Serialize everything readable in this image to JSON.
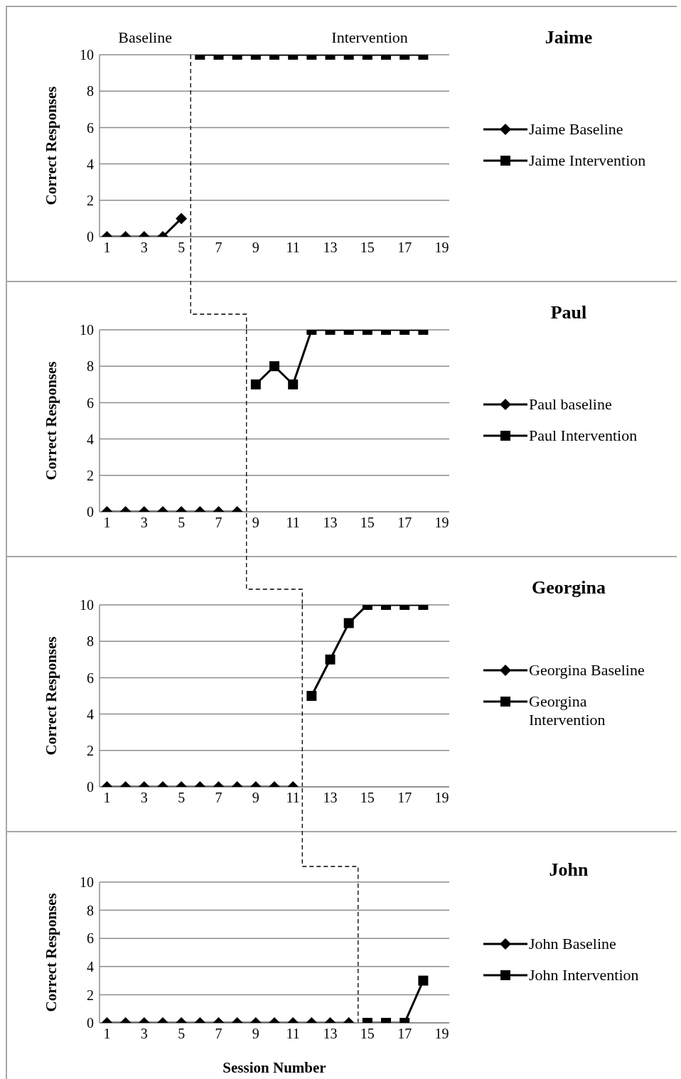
{
  "chart_data": [
    {
      "type": "line",
      "legend_title": "Jaime",
      "ylabel": "Correct Responses",
      "annotations": [
        "Baseline",
        "Intervention"
      ],
      "xlim": [
        0.6,
        19.4
      ],
      "xticks": [
        1,
        3,
        5,
        7,
        9,
        11,
        13,
        15,
        17,
        19
      ],
      "ylim": [
        0,
        10
      ],
      "yticks": [
        0,
        2,
        4,
        6,
        8,
        10
      ],
      "grid": "y",
      "legend": "right",
      "line_style": "solid",
      "ref_lines": [
        {
          "axis": "x",
          "value": 5.5,
          "line_style": "dashed"
        }
      ],
      "series": [
        {
          "name": "Jaime Baseline",
          "color": "#000000",
          "marker": "diamond",
          "x": [
            1,
            2,
            3,
            4,
            5
          ],
          "values": [
            0,
            0,
            0,
            0,
            1
          ]
        },
        {
          "name": "Jaime Intervention",
          "color": "#000000",
          "marker": "square",
          "x": [
            6,
            7,
            8,
            9,
            10,
            11,
            12,
            13,
            14,
            15,
            16,
            17,
            18
          ],
          "values": [
            10,
            10,
            10,
            10,
            10,
            10,
            10,
            10,
            10,
            10,
            10,
            10,
            10
          ]
        }
      ]
    },
    {
      "type": "line",
      "legend_title": "Paul",
      "ylabel": "Correct Responses",
      "xlim": [
        0.6,
        19.4
      ],
      "xticks": [
        1,
        3,
        5,
        7,
        9,
        11,
        13,
        15,
        17,
        19
      ],
      "ylim": [
        0,
        10
      ],
      "yticks": [
        0,
        2,
        4,
        6,
        8,
        10
      ],
      "grid": "y",
      "legend": "right",
      "line_style": "solid",
      "ref_lines": [
        {
          "axis": "x",
          "value": 8.5,
          "line_style": "dashed"
        }
      ],
      "series": [
        {
          "name": "Paul baseline",
          "color": "#000000",
          "marker": "diamond",
          "x": [
            1,
            2,
            3,
            4,
            5,
            6,
            7,
            8
          ],
          "values": [
            0,
            0,
            0,
            0,
            0,
            0,
            0,
            0
          ]
        },
        {
          "name": "Paul Intervention",
          "color": "#000000",
          "marker": "square",
          "x": [
            9,
            10,
            11,
            12,
            13,
            14,
            15,
            16,
            17,
            18
          ],
          "values": [
            7,
            8,
            7,
            10,
            10,
            10,
            10,
            10,
            10,
            10
          ]
        }
      ]
    },
    {
      "type": "line",
      "legend_title": "Georgina",
      "ylabel": "Correct Responses",
      "xlim": [
        0.6,
        19.4
      ],
      "xticks": [
        1,
        3,
        5,
        7,
        9,
        11,
        13,
        15,
        17,
        19
      ],
      "ylim": [
        0,
        10
      ],
      "yticks": [
        0,
        2,
        4,
        6,
        8,
        10
      ],
      "grid": "y",
      "legend": "right",
      "line_style": "solid",
      "ref_lines": [
        {
          "axis": "x",
          "value": 11.5,
          "line_style": "dashed"
        }
      ],
      "series": [
        {
          "name": "Georgina Baseline",
          "color": "#000000",
          "marker": "diamond",
          "x": [
            1,
            2,
            3,
            4,
            5,
            6,
            7,
            8,
            9,
            10,
            11
          ],
          "values": [
            0,
            0,
            0,
            0,
            0,
            0,
            0,
            0,
            0,
            0,
            0
          ]
        },
        {
          "name": "Georgina Intervention",
          "color": "#000000",
          "marker": "square",
          "x": [
            12,
            13,
            14,
            15,
            16,
            17,
            18
          ],
          "values": [
            5,
            7,
            9,
            10,
            10,
            10,
            10
          ]
        }
      ]
    },
    {
      "type": "line",
      "legend_title": "John",
      "ylabel": "Correct Responses",
      "xlabel": "Session Number",
      "xlim": [
        0.6,
        19.4
      ],
      "xticks": [
        1,
        3,
        5,
        7,
        9,
        11,
        13,
        15,
        17,
        19
      ],
      "ylim": [
        0,
        10
      ],
      "yticks": [
        0,
        2,
        4,
        6,
        8,
        10
      ],
      "grid": "y",
      "legend": "right",
      "line_style": "solid",
      "ref_lines": [
        {
          "axis": "x",
          "value": 14.5,
          "line_style": "dashed"
        }
      ],
      "series": [
        {
          "name": "John Baseline",
          "color": "#000000",
          "marker": "diamond",
          "x": [
            1,
            2,
            3,
            4,
            5,
            6,
            7,
            8,
            9,
            10,
            11,
            12,
            13,
            14
          ],
          "values": [
            0,
            0,
            0,
            0,
            0,
            0,
            0,
            0,
            0,
            0,
            0,
            0,
            0,
            0
          ]
        },
        {
          "name": "John Intervention",
          "color": "#000000",
          "marker": "square",
          "x": [
            15,
            16,
            17,
            18
          ],
          "values": [
            0,
            0,
            0,
            3
          ]
        }
      ]
    }
  ]
}
